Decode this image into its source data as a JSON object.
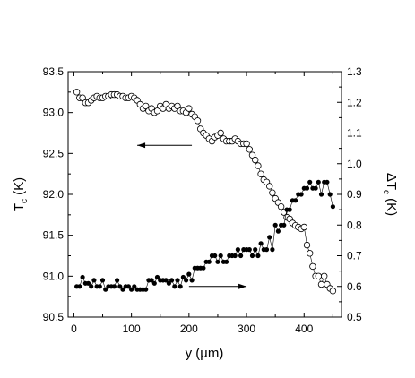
{
  "chart_data": {
    "type": "scatter",
    "xlabel": "y (µm)",
    "ylabel_left_main": "T",
    "ylabel_left_sub": "c",
    "ylabel_left_unit": " (K)",
    "ylabel_right_main": "ΔT",
    "ylabel_right_sub": "c",
    "ylabel_right_unit": " (K)",
    "xlim": [
      -10,
      465
    ],
    "ylim_left": [
      90.5,
      93.5
    ],
    "ylim_right": [
      0.5,
      1.3
    ],
    "xticks": [
      0,
      100,
      200,
      300,
      400
    ],
    "xtick_labels": [
      "0",
      "100",
      "200",
      "300",
      "400"
    ],
    "yticks_left": [
      90.5,
      91.0,
      91.5,
      92.0,
      92.5,
      93.0,
      93.5
    ],
    "ytick_labels_left": [
      "90.5",
      "91.0",
      "91.5",
      "92.0",
      "92.5",
      "93.0",
      "93.5"
    ],
    "yticks_right": [
      0.5,
      0.6,
      0.7,
      0.8,
      0.9,
      1.0,
      1.1,
      1.2,
      1.3
    ],
    "ytick_labels_right": [
      "0.5",
      "0.6",
      "0.7",
      "0.8",
      "0.9",
      "1.0",
      "1.1",
      "1.2",
      "1.3"
    ],
    "series": [
      {
        "axis": "left",
        "marker": "open-circle",
        "x": [
          5,
          10,
          15,
          20,
          25,
          30,
          35,
          40,
          45,
          50,
          55,
          60,
          65,
          70,
          75,
          80,
          85,
          90,
          95,
          100,
          105,
          110,
          115,
          120,
          125,
          130,
          135,
          140,
          145,
          150,
          155,
          160,
          165,
          170,
          175,
          180,
          185,
          190,
          195,
          200,
          205,
          210,
          215,
          220,
          225,
          230,
          235,
          240,
          245,
          250,
          255,
          260,
          265,
          270,
          275,
          280,
          285,
          290,
          295,
          300,
          305,
          310,
          315,
          320,
          325,
          330,
          335,
          340,
          345,
          350,
          355,
          360,
          365,
          370,
          375,
          380,
          385,
          390,
          395,
          400,
          405,
          410,
          415,
          420,
          425,
          430,
          435,
          440,
          445,
          450
        ],
        "y": [
          93.25,
          93.18,
          93.18,
          93.12,
          93.12,
          93.15,
          93.18,
          93.2,
          93.18,
          93.18,
          93.2,
          93.2,
          93.22,
          93.22,
          93.22,
          93.2,
          93.2,
          93.18,
          93.18,
          93.2,
          93.18,
          93.15,
          93.1,
          93.05,
          93.08,
          93.02,
          93.05,
          93.0,
          93.02,
          93.08,
          93.05,
          93.1,
          93.05,
          93.08,
          93.05,
          93.08,
          93.02,
          93.02,
          93.0,
          93.05,
          92.98,
          92.95,
          92.9,
          92.8,
          92.75,
          92.72,
          92.68,
          92.65,
          92.7,
          92.72,
          92.75,
          92.68,
          92.65,
          92.65,
          92.65,
          92.68,
          92.65,
          92.62,
          92.62,
          92.62,
          92.55,
          92.48,
          92.42,
          92.35,
          92.25,
          92.18,
          92.15,
          92.1,
          92.02,
          91.95,
          91.9,
          91.85,
          91.78,
          91.72,
          91.7,
          91.65,
          91.62,
          91.6,
          91.58,
          91.6,
          91.38,
          91.28,
          91.12,
          91.0,
          91.0,
          90.9,
          91.0,
          90.9,
          90.85,
          90.82
        ]
      },
      {
        "axis": "right",
        "marker": "filled-circle",
        "x": [
          5,
          10,
          15,
          20,
          25,
          30,
          35,
          40,
          45,
          50,
          55,
          60,
          65,
          70,
          75,
          80,
          85,
          90,
          95,
          100,
          105,
          110,
          115,
          120,
          125,
          130,
          135,
          140,
          145,
          150,
          155,
          160,
          165,
          170,
          175,
          180,
          185,
          190,
          195,
          200,
          205,
          210,
          215,
          220,
          225,
          230,
          235,
          240,
          245,
          250,
          255,
          260,
          265,
          270,
          275,
          280,
          285,
          290,
          295,
          300,
          305,
          310,
          315,
          320,
          325,
          330,
          335,
          340,
          345,
          350,
          355,
          360,
          365,
          370,
          375,
          380,
          385,
          390,
          395,
          400,
          405,
          410,
          415,
          420,
          425,
          430,
          435,
          440,
          445,
          450
        ],
        "y": [
          0.6,
          0.6,
          0.63,
          0.61,
          0.61,
          0.6,
          0.62,
          0.6,
          0.6,
          0.62,
          0.59,
          0.6,
          0.6,
          0.6,
          0.62,
          0.6,
          0.59,
          0.6,
          0.6,
          0.59,
          0.6,
          0.59,
          0.59,
          0.59,
          0.59,
          0.62,
          0.62,
          0.61,
          0.63,
          0.62,
          0.62,
          0.62,
          0.61,
          0.62,
          0.6,
          0.62,
          0.6,
          0.63,
          0.62,
          0.64,
          0.62,
          0.66,
          0.66,
          0.66,
          0.66,
          0.68,
          0.68,
          0.7,
          0.7,
          0.68,
          0.7,
          0.68,
          0.68,
          0.7,
          0.7,
          0.7,
          0.72,
          0.7,
          0.72,
          0.72,
          0.72,
          0.7,
          0.72,
          0.7,
          0.74,
          0.72,
          0.72,
          0.76,
          0.72,
          0.8,
          0.78,
          0.8,
          0.8,
          0.85,
          0.85,
          0.88,
          0.88,
          0.9,
          0.9,
          0.92,
          0.92,
          0.94,
          0.92,
          0.92,
          0.94,
          0.9,
          0.94,
          0.94,
          0.9,
          0.86
        ]
      }
    ],
    "annotations": [
      {
        "type": "arrow",
        "direction": "left",
        "from_x": 205,
        "to_x": 110,
        "y": 92.6,
        "axis": "left"
      },
      {
        "type": "arrow",
        "direction": "right",
        "from_x": 200,
        "to_x": 300,
        "y": 0.6,
        "axis": "right"
      }
    ],
    "grid": false,
    "legend": "none"
  }
}
